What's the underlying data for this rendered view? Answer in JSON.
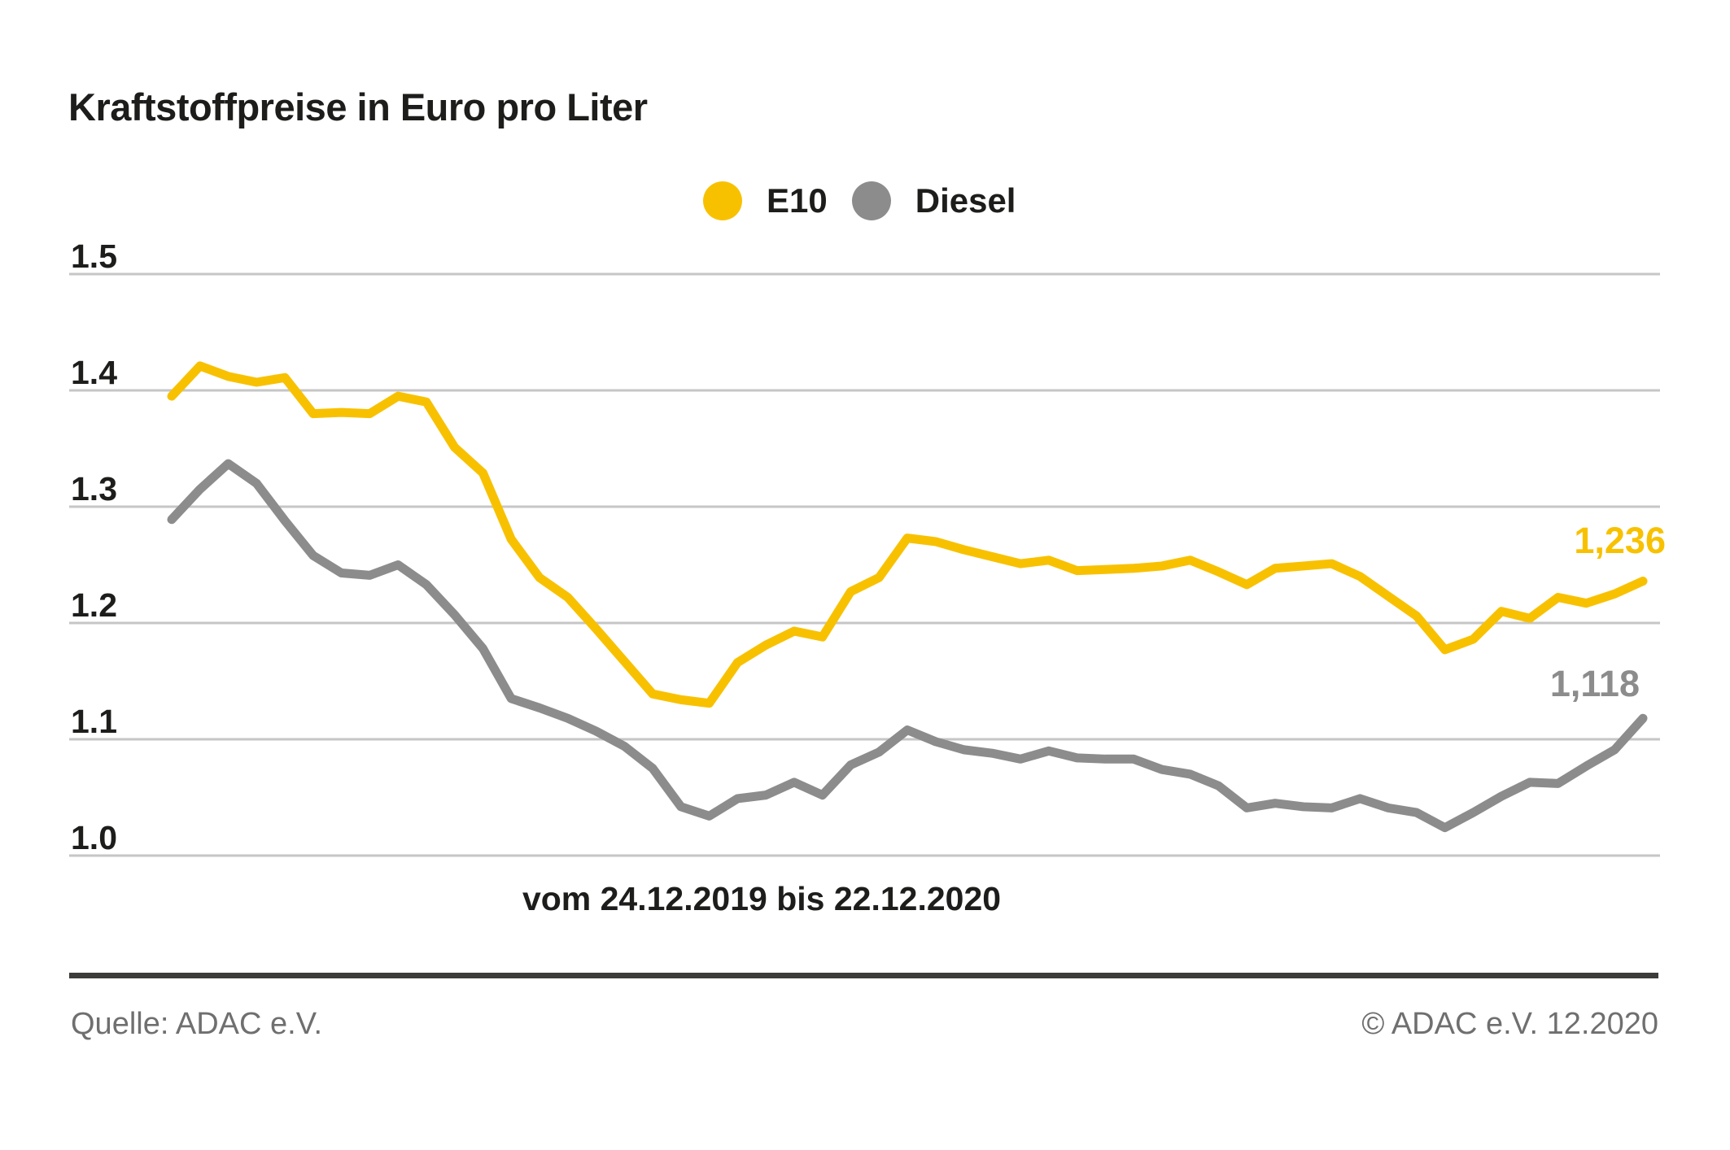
{
  "title": "Kraftstoffpreise in Euro pro Liter",
  "legend": {
    "items": [
      {
        "label": "E10",
        "color": "#f8c100"
      },
      {
        "label": "Diesel",
        "color": "#8c8c8c"
      }
    ]
  },
  "xlabel": "vom 24.12.2019 bis 22.12.2020",
  "footer": {
    "source": "Quelle: ADAC e.V.",
    "copyright": "© ADAC e.V. 12.2020"
  },
  "colors": {
    "e10": "#f8c100",
    "diesel": "#8c8c8c",
    "gridline": "#c6c6c6",
    "text": "#1d1d1b",
    "footer_text": "#706f6f",
    "footer_rule": "#3c3c3b"
  },
  "chart_data": {
    "type": "line",
    "title": "Kraftstoffpreise in Euro pro Liter",
    "xlabel": "vom 24.12.2019 bis 22.12.2020",
    "ylabel": "Euro pro Liter",
    "x_start": "24.12.2019",
    "x_end": "22.12.2020",
    "x_interval": "weekly",
    "yticks": [
      "1.5",
      "1.4",
      "1.3",
      "1.2",
      "1.1",
      "1.0"
    ],
    "ylim": [
      0.95,
      1.53
    ],
    "grid": "horizontal",
    "legend_position": "top-center",
    "end_value_labels": {
      "e10": "1,236",
      "diesel": "1,118"
    },
    "series": [
      {
        "name": "E10",
        "color": "#f8c100",
        "values": [
          1.395,
          1.421,
          1.412,
          1.407,
          1.411,
          1.38,
          1.381,
          1.38,
          1.395,
          1.39,
          1.351,
          1.329,
          1.272,
          1.239,
          1.222,
          1.195,
          1.167,
          1.139,
          1.134,
          1.131,
          1.166,
          1.181,
          1.193,
          1.188,
          1.227,
          1.239,
          1.273,
          1.27,
          1.263,
          1.257,
          1.251,
          1.254,
          1.245,
          1.246,
          1.247,
          1.249,
          1.254,
          1.244,
          1.233,
          1.247,
          1.249,
          1.251,
          1.24,
          1.223,
          1.206,
          1.177,
          1.186,
          1.21,
          1.204,
          1.222,
          1.217,
          1.225,
          1.236
        ]
      },
      {
        "name": "Diesel",
        "color": "#8c8c8c",
        "values": [
          1.289,
          1.315,
          1.337,
          1.32,
          1.288,
          1.258,
          1.243,
          1.241,
          1.25,
          1.233,
          1.207,
          1.178,
          1.135,
          1.127,
          1.118,
          1.107,
          1.094,
          1.075,
          1.042,
          1.034,
          1.049,
          1.052,
          1.063,
          1.052,
          1.078,
          1.089,
          1.108,
          1.098,
          1.091,
          1.088,
          1.083,
          1.09,
          1.084,
          1.083,
          1.083,
          1.074,
          1.07,
          1.06,
          1.041,
          1.045,
          1.042,
          1.041,
          1.049,
          1.041,
          1.037,
          1.024,
          1.037,
          1.051,
          1.063,
          1.062,
          1.077,
          1.091,
          1.118
        ]
      }
    ]
  }
}
